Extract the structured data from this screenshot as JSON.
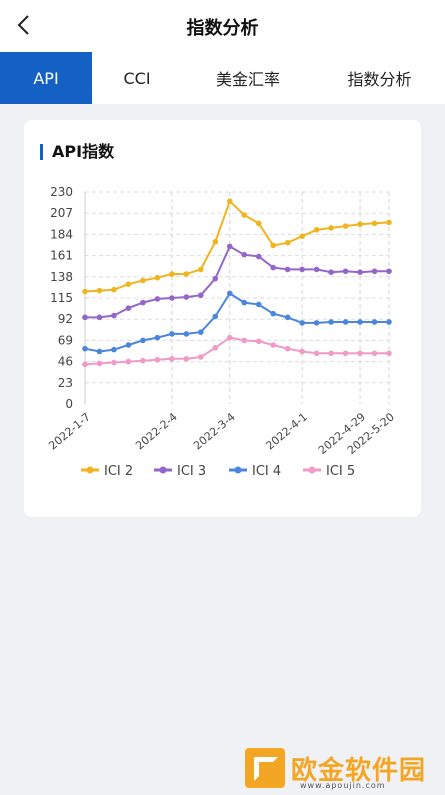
{
  "header": {
    "title": "指数分析",
    "back_icon": "back-arrow-icon"
  },
  "tabs": [
    {
      "label": "API",
      "active": true
    },
    {
      "label": "CCI",
      "active": false
    },
    {
      "label": "美金汇率",
      "active": false
    },
    {
      "label": "指数分析",
      "active": false
    }
  ],
  "card": {
    "title": "API指数"
  },
  "chart_data": {
    "type": "line",
    "title": "API指数",
    "yticks": [
      "230",
      "207",
      "184",
      "161",
      "138",
      "115",
      "92",
      "69",
      "46",
      "23",
      "0"
    ],
    "ylim": [
      0,
      230
    ],
    "xticks": [
      "2022-1-7",
      "2022-2-4",
      "2022-3-4",
      "2022-4-1",
      "2022-4-29",
      "2022-5-20"
    ],
    "grid": true,
    "legend_position": "bottom",
    "series": [
      {
        "name": "ICI 2",
        "color": "#f0b51e",
        "values": [
          122,
          123,
          124,
          130,
          134,
          137,
          141,
          141,
          146,
          176,
          220,
          205,
          196,
          172,
          175,
          182,
          189,
          191,
          193,
          195,
          196,
          197
        ]
      },
      {
        "name": "ICI 3",
        "color": "#9466c9",
        "values": [
          94,
          94,
          96,
          104,
          110,
          114,
          115,
          116,
          118,
          136,
          171,
          162,
          160,
          148,
          146,
          146,
          146,
          143,
          144,
          143,
          144,
          144
        ]
      },
      {
        "name": "ICI 4",
        "color": "#4a86de",
        "values": [
          60,
          57,
          59,
          64,
          69,
          72,
          76,
          76,
          78,
          95,
          120,
          110,
          108,
          98,
          94,
          88,
          88,
          89,
          89,
          89,
          89,
          89
        ]
      },
      {
        "name": "ICI 5",
        "color": "#f09ac8",
        "values": [
          43,
          44,
          45,
          46,
          47,
          48,
          49,
          49,
          51,
          61,
          72,
          69,
          68,
          64,
          60,
          57,
          55,
          55,
          55,
          55,
          55,
          55
        ]
      }
    ]
  },
  "watermark": {
    "text": "欧金软件园",
    "url": "www.apoujin.com"
  }
}
